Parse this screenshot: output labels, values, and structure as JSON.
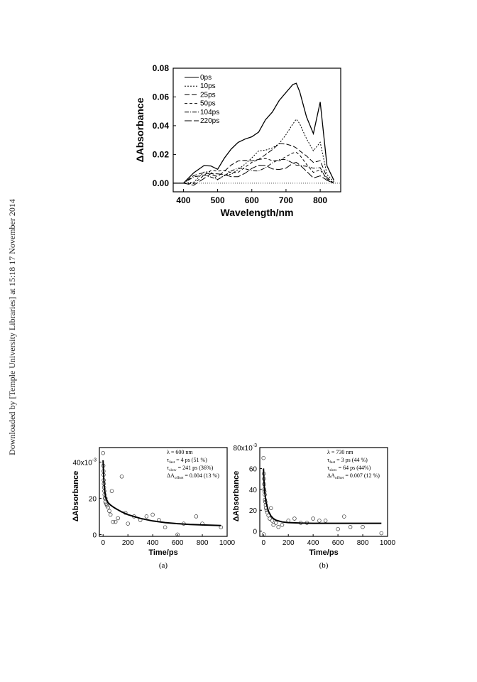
{
  "side_note": "Downloaded by [Temple University Libraries] at 15:18 17 November 2014",
  "chart_data": [
    {
      "type": "line",
      "xlabel": "Wavelength/nm",
      "ylabel": "ΔAbsorbance",
      "xlim": [
        370,
        860
      ],
      "ylim": [
        -0.006,
        0.08
      ],
      "x_ticks": [
        "400",
        "500",
        "600",
        "700",
        "800"
      ],
      "y_ticks": [
        "0.00",
        "0.02",
        "0.04",
        "0.06",
        "0.08"
      ],
      "legend_position": "top-left",
      "series": [
        {
          "name": "0ps",
          "dash": "",
          "x": [
            370,
            400,
            430,
            460,
            480,
            500,
            520,
            540,
            560,
            580,
            600,
            620,
            640,
            660,
            680,
            700,
            720,
            730,
            740,
            760,
            780,
            800,
            820,
            840
          ],
          "y": [
            0.0,
            0.0,
            0.005,
            0.012,
            0.014,
            0.012,
            0.018,
            0.022,
            0.026,
            0.03,
            0.034,
            0.038,
            0.045,
            0.048,
            0.055,
            0.062,
            0.07,
            0.072,
            0.065,
            0.045,
            0.032,
            0.055,
            0.012,
            0.002
          ]
        },
        {
          "name": "10ps",
          "dash": "2,2",
          "x": [
            370,
            400,
            430,
            460,
            480,
            500,
            520,
            540,
            560,
            580,
            600,
            620,
            640,
            660,
            680,
            700,
            720,
            730,
            740,
            760,
            780,
            800,
            820,
            840
          ],
          "y": [
            0.0,
            0.0,
            0.003,
            0.008,
            0.006,
            0.0,
            0.005,
            0.008,
            0.012,
            0.014,
            0.016,
            0.02,
            0.022,
            0.026,
            0.03,
            0.035,
            0.04,
            0.042,
            0.04,
            0.032,
            0.025,
            0.03,
            0.006,
            0.001
          ]
        },
        {
          "name": "25ps",
          "dash": "7,3",
          "x": [
            370,
            400,
            430,
            460,
            480,
            500,
            520,
            540,
            560,
            580,
            600,
            620,
            640,
            660,
            680,
            700,
            720,
            730,
            740,
            760,
            780,
            800,
            820,
            840
          ],
          "y": [
            0.0,
            0.0,
            0.003,
            0.007,
            0.008,
            0.007,
            0.009,
            0.011,
            0.013,
            0.015,
            0.017,
            0.019,
            0.021,
            0.022,
            0.025,
            0.026,
            0.027,
            0.027,
            0.024,
            0.018,
            0.012,
            0.014,
            0.004,
            0.0
          ]
        },
        {
          "name": "50ps",
          "dash": "4,3",
          "x": [
            370,
            400,
            430,
            460,
            480,
            500,
            520,
            540,
            560,
            580,
            600,
            620,
            640,
            660,
            680,
            700,
            720,
            730,
            740,
            760,
            780,
            800,
            820,
            840
          ],
          "y": [
            0.0,
            0.0,
            0.002,
            0.006,
            0.007,
            0.006,
            0.008,
            0.009,
            0.01,
            0.012,
            0.013,
            0.014,
            0.016,
            0.017,
            0.018,
            0.02,
            0.02,
            0.019,
            0.018,
            0.014,
            0.01,
            0.011,
            0.003,
            0.0
          ]
        },
        {
          "name": "104ps",
          "dash": "6,2,1,2",
          "x": [
            370,
            400,
            430,
            460,
            480,
            500,
            520,
            540,
            560,
            580,
            600,
            620,
            640,
            660,
            680,
            700,
            720,
            730,
            740,
            760,
            780,
            800,
            820,
            840
          ],
          "y": [
            0.0,
            0.0,
            0.002,
            0.005,
            0.006,
            0.005,
            0.006,
            0.007,
            0.008,
            0.009,
            0.01,
            0.011,
            0.012,
            0.013,
            0.014,
            0.015,
            0.015,
            0.015,
            0.014,
            0.011,
            0.008,
            0.009,
            0.002,
            0.0
          ]
        },
        {
          "name": "220ps",
          "dash": "10,3",
          "x": [
            370,
            400,
            430,
            460,
            480,
            500,
            520,
            540,
            560,
            580,
            600,
            620,
            640,
            660,
            680,
            700,
            720,
            730,
            740,
            760,
            780,
            800,
            820,
            840
          ],
          "y": [
            0.0,
            0.0,
            0.001,
            0.004,
            0.005,
            0.004,
            0.005,
            0.006,
            0.007,
            0.008,
            0.009,
            0.01,
            0.011,
            0.011,
            0.012,
            0.012,
            0.013,
            0.012,
            0.011,
            0.009,
            0.006,
            0.007,
            0.002,
            0.0
          ]
        }
      ],
      "baseline": 0
    },
    {
      "type": "scatter",
      "caption": "(a)",
      "xlabel": "Time/ps",
      "ylabel": "ΔAbsorbance",
      "xlim": [
        -30,
        1000
      ],
      "ylim": [
        -1,
        48
      ],
      "x_ticks": [
        "0",
        "200",
        "400",
        "600",
        "800",
        "1000"
      ],
      "y_ticks": [
        "0",
        "20",
        "40x10"
      ],
      "y_exponent": "-3",
      "annotation": {
        "line1": "λ = 600 nm",
        "line2_a": "τ",
        "line2_sub": "fast",
        "line2_b": " = 4 ps (51 %)",
        "line3_a": "τ",
        "line3_sub": "slow",
        "line3_b": " = 241 ps (36%)",
        "line4_a": "ΔA",
        "line4_sub": "offset",
        "line4_b": " = 0.004 (13 %)"
      },
      "points_x": [
        0,
        2,
        3,
        4,
        5,
        6,
        8,
        10,
        12,
        15,
        18,
        20,
        25,
        30,
        40,
        50,
        60,
        70,
        80,
        100,
        120,
        150,
        180,
        200,
        250,
        300,
        350,
        400,
        450,
        500,
        600,
        650,
        750,
        800,
        950
      ],
      "points_y": [
        45,
        38,
        35,
        33,
        30,
        28,
        26,
        24,
        22,
        20,
        18,
        20,
        17,
        16,
        15,
        13,
        11,
        24,
        7,
        7,
        9,
        32,
        12,
        6,
        10,
        8,
        10,
        11,
        8,
        4,
        0,
        6,
        10,
        6,
        4
      ],
      "fit_x": [
        0,
        5,
        10,
        20,
        40,
        60,
        80,
        100,
        150,
        200,
        300,
        400,
        500,
        600,
        700,
        800,
        950
      ],
      "fit_y": [
        41,
        31.5,
        26,
        20.5,
        17.6,
        16.3,
        15.3,
        14.4,
        12.5,
        11.0,
        8.9,
        7.5,
        6.6,
        6.0,
        5.6,
        5.3,
        5.0
      ]
    },
    {
      "type": "scatter",
      "caption": "(b)",
      "xlabel": "Time/ps",
      "ylabel": "ΔAbsorbance",
      "xlim": [
        -30,
        1000
      ],
      "ylim": [
        -5,
        80
      ],
      "x_ticks": [
        "0",
        "200",
        "400",
        "600",
        "800",
        "1000"
      ],
      "y_ticks": [
        "0",
        "20",
        "40",
        "60",
        "80x10"
      ],
      "y_exponent": "-3",
      "annotation": {
        "line1": "λ = 730 nm",
        "line2_a": "τ",
        "line2_sub": "fast",
        "line2_b": " = 3 ps (44 %)",
        "line3_a": "τ",
        "line3_sub": "slow",
        "line3_b": " = 64 ps (44%)",
        "line4_a": "ΔA",
        "line4_sub": "offset",
        "line4_b": " = 0.007 (12 %)"
      },
      "points_x": [
        0,
        2,
        3,
        4,
        5,
        6,
        8,
        10,
        12,
        15,
        18,
        20,
        25,
        30,
        40,
        50,
        60,
        70,
        80,
        100,
        120,
        150,
        200,
        250,
        300,
        350,
        400,
        450,
        500,
        600,
        650,
        700,
        800,
        950
      ],
      "points_y": [
        70,
        -3,
        55,
        50,
        45,
        40,
        38,
        35,
        30,
        28,
        25,
        22,
        20,
        18,
        15,
        12,
        22,
        10,
        6,
        8,
        4,
        6,
        10,
        12,
        8,
        8,
        12,
        10,
        10,
        2,
        14,
        4,
        4,
        -2
      ],
      "fit_x": [
        0,
        5,
        10,
        20,
        40,
        60,
        80,
        100,
        150,
        200,
        300,
        400,
        500,
        600,
        700,
        800,
        950
      ],
      "fit_y": [
        60,
        45,
        37,
        28,
        19,
        14.5,
        12,
        10.5,
        8.8,
        8.2,
        7.7,
        7.5,
        7.5,
        7.5,
        7.5,
        7.5,
        7.5
      ]
    }
  ]
}
